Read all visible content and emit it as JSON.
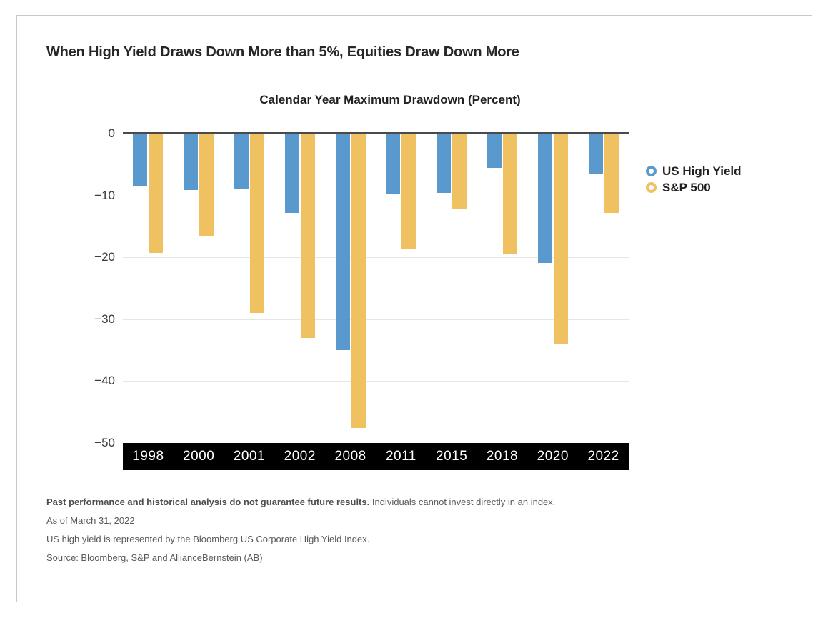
{
  "page": {
    "title": "When High Yield Draws Down More than 5%, Equities Draw Down More"
  },
  "chart_data": {
    "type": "bar",
    "title": "Calendar Year Maximum Drawdown (Percent)",
    "categories": [
      "1998",
      "2000",
      "2001",
      "2002",
      "2008",
      "2011",
      "2015",
      "2018",
      "2020",
      "2022"
    ],
    "series": [
      {
        "name": "US High Yield",
        "color": "#5999CE",
        "values": [
          -8.5,
          -9.1,
          -9.0,
          -12.8,
          -35.0,
          -9.7,
          -9.6,
          -5.5,
          -20.9,
          -6.5
        ]
      },
      {
        "name": "S&P 500",
        "color": "#F0C161",
        "values": [
          -19.3,
          -16.6,
          -29.0,
          -33.0,
          -47.6,
          -18.7,
          -12.1,
          -19.4,
          -33.9,
          -12.8
        ]
      }
    ],
    "ylim": [
      -50,
      0
    ],
    "yticks": [
      0,
      -10,
      -20,
      -30,
      -40,
      -50
    ],
    "grid": true,
    "legend_position": "right",
    "xaxis_band_color": "#000000",
    "zero_line_color": "#4a4a4a"
  },
  "legend": {
    "items": [
      {
        "label": "US High Yield",
        "marker": "ring",
        "color": "#5999CE"
      },
      {
        "label": "S&P 500",
        "marker": "ring",
        "color": "#F0C161"
      }
    ]
  },
  "footer": {
    "line1_bold": "Past performance and historical analysis do not guarantee future results.",
    "line1_rest": "Individuals cannot invest directly in an index.",
    "line2": "As of March 31, 2022",
    "line3": "US high yield is represented by the Bloomberg US Corporate High Yield Index.",
    "line4": "Source: Bloomberg, S&P and AllianceBernstein (AB)"
  }
}
